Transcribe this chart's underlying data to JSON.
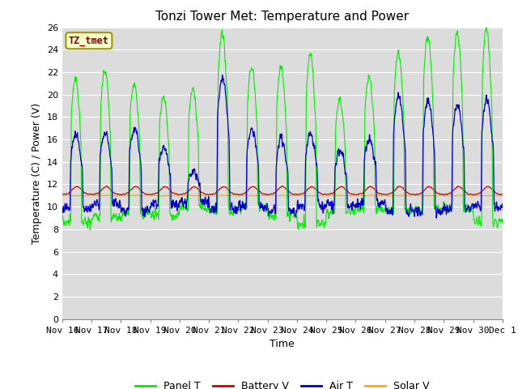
{
  "title": "Tonzi Tower Met: Temperature and Power",
  "ylabel": "Temperature (C) / Power (V)",
  "xlabel": "Time",
  "annotation": "TZ_tmet",
  "ylim": [
    0,
    26
  ],
  "yticks": [
    0,
    2,
    4,
    6,
    8,
    10,
    12,
    14,
    16,
    18,
    20,
    22,
    24,
    26
  ],
  "xtick_labels": [
    "Nov 16",
    "Nov 17",
    "Nov 18",
    "Nov 19",
    "Nov 20",
    "Nov 21",
    "Nov 22",
    "Nov 23",
    "Nov 24",
    "Nov 25",
    "Nov 26",
    "Nov 27",
    "Nov 28",
    "Nov 29",
    "Nov 30",
    "Dec 1"
  ],
  "bg_color": "#dcdcdc",
  "grid_color": "#ffffff",
  "legend_items": [
    "Panel T",
    "Battery V",
    "Air T",
    "Solar V"
  ],
  "line_colors": [
    "#00ee00",
    "#cc0000",
    "#0000cc",
    "#ffaa00"
  ],
  "title_fontsize": 11,
  "label_fontsize": 9,
  "tick_fontsize": 8,
  "legend_fontsize": 9,
  "annotation_color": "#8B0000",
  "annotation_bg": "#ffffcc",
  "annotation_edge": "#999900"
}
